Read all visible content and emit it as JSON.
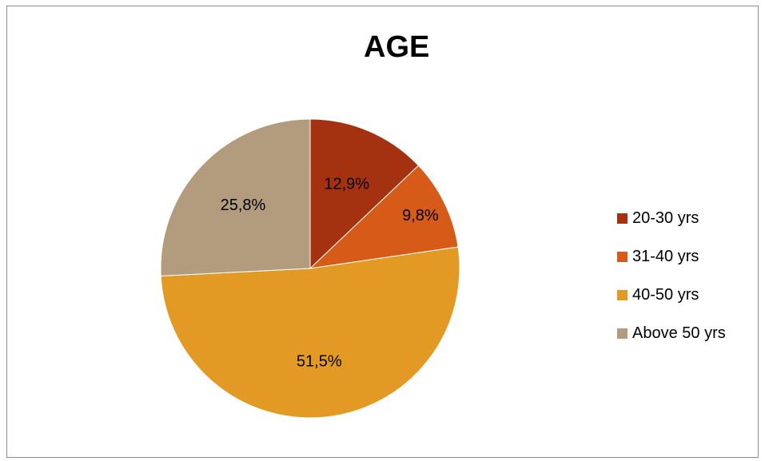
{
  "chart_data": {
    "type": "pie",
    "title": "AGE",
    "categories": [
      "20-30 yrs",
      "31-40 yrs",
      "40-50 yrs",
      "Above 50 yrs"
    ],
    "values": [
      12.9,
      9.8,
      51.5,
      25.8
    ],
    "labels": [
      "12,9%",
      "9,8%",
      "51,5%",
      "25,8%"
    ],
    "colors": [
      "#a43210",
      "#d75b18",
      "#e39a25",
      "#b39c7d"
    ],
    "start_angle": "12 o'clock",
    "direction": "clockwise",
    "legend": "right"
  }
}
